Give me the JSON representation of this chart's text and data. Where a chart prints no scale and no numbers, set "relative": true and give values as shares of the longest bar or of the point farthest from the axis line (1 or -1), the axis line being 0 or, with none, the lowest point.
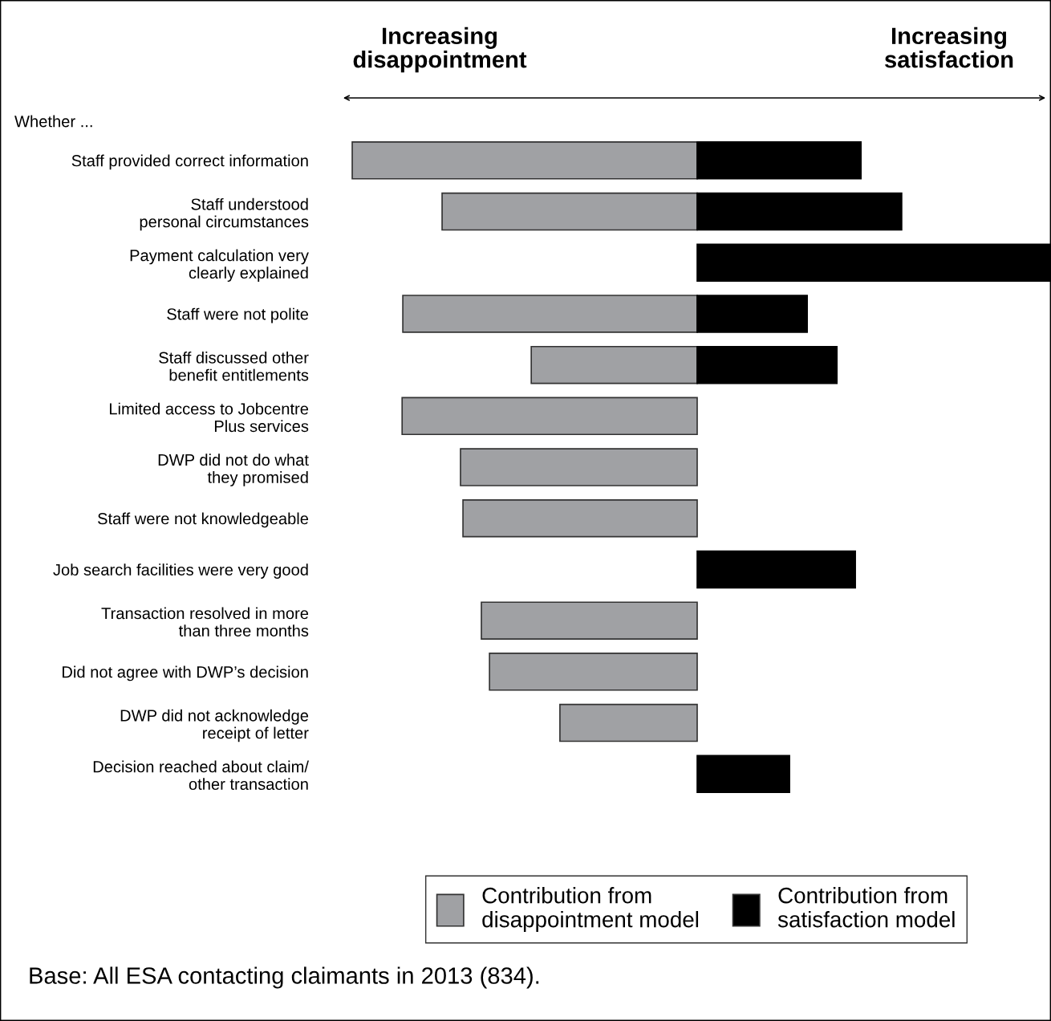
{
  "chart_data": {
    "type": "bar",
    "orientation": "horizontal",
    "relative": true,
    "categories": [
      "Staff provided correct information",
      "Staff understood\npersonal circumstances",
      "Payment calculation very\nclearly explained",
      "Staff were not polite",
      "Staff discussed other\nbenefit entitlements",
      "Limited access to Jobcentre\nPlus services",
      "DWP did not do what\nthey promised",
      "Staff were not knowledgeable",
      "Job search facilities were very good",
      "Transaction resolved in more\nthan three months",
      "Did not agree with DWP’s decision",
      "DWP did not acknowledge\nreceipt of letter",
      "Decision reached about claim/\nother transaction"
    ],
    "series": [
      {
        "name": "Contribution from\ndisappointment model",
        "color": "#a0a1a4",
        "values": [
          -0.975,
          -0.721,
          null,
          -0.832,
          -0.469,
          -0.834,
          -0.669,
          -0.662,
          null,
          -0.61,
          -0.587,
          -0.388,
          null
        ]
      },
      {
        "name": "Contribution from\nsatisfaction model",
        "color": "#000000",
        "values": [
          0.463,
          0.578,
          1.0,
          0.311,
          0.395,
          null,
          null,
          null,
          0.447,
          null,
          null,
          null,
          0.261
        ]
      }
    ],
    "legend": "bottom",
    "annotations": [
      "Increasing\ndisappointment",
      "Increasing\nsatisfaction",
      "Whether ...",
      "Base: All ESA contacting claimants in 2013 (834)."
    ]
  }
}
